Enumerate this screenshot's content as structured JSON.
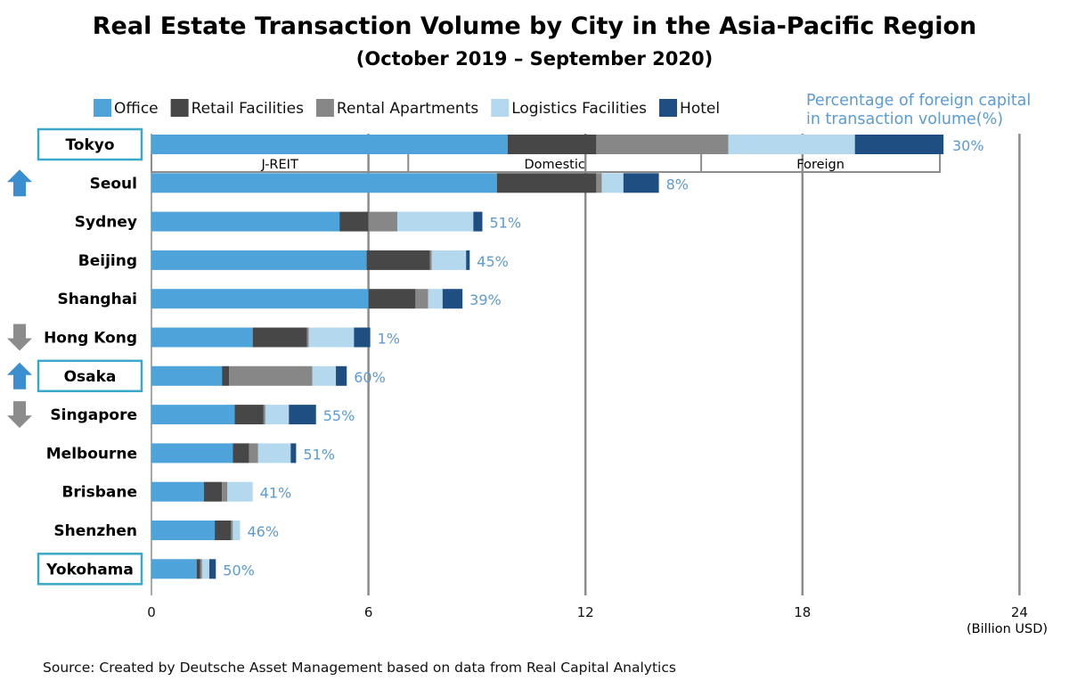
{
  "title": "Real Estate Transaction Volume by City in the Asia-Pacific Region",
  "subtitle": "(October 2019 – September 2020)",
  "pct_header_line1": "Percentage of foreign capital",
  "pct_header_line2": "in transaction volume(%)",
  "unit_label": "(Billion USD)",
  "source": "Source: Created by Deutsche Asset Management based on data from Real Capital Analytics",
  "tokyo_investor_breakdown": [
    {
      "label": "J-REIT",
      "start": 0,
      "end": 7.1
    },
    {
      "label": "Domestic",
      "start": 7.1,
      "end": 15.2
    },
    {
      "label": "Foreign",
      "start": 15.2,
      "end": 21.8
    }
  ],
  "chart_data": {
    "type": "bar",
    "orientation": "horizontal",
    "stacked": true,
    "title": "Real Estate Transaction Volume by City in the Asia-Pacific Region",
    "subtitle": "(October 2019 – September 2020)",
    "xlabel": "(Billion USD)",
    "xlim": [
      0,
      24
    ],
    "xticks": [
      0,
      6,
      12,
      18,
      24
    ],
    "grid": true,
    "legend_position": "top",
    "categories": [
      "Tokyo",
      "Seoul",
      "Sydney",
      "Beijing",
      "Shanghai",
      "Hong Kong",
      "Osaka",
      "Singapore",
      "Melbourne",
      "Brisbane",
      "Shenzhen",
      "Yokohama"
    ],
    "highlighted": [
      "Tokyo",
      "Osaka",
      "Yokohama"
    ],
    "rank_change": [
      "",
      "up",
      "",
      "",
      "",
      "down",
      "up",
      "down",
      "",
      "",
      "",
      ""
    ],
    "series": [
      {
        "name": "Office",
        "color": "#4FA3DB",
        "values": [
          9.85,
          9.55,
          5.2,
          5.95,
          6.0,
          2.8,
          1.95,
          2.3,
          2.25,
          1.45,
          1.75,
          1.25
        ]
      },
      {
        "name": "Retail Facilities",
        "color": "#474747",
        "values": [
          2.45,
          2.75,
          0.8,
          1.75,
          1.3,
          1.5,
          0.2,
          0.8,
          0.45,
          0.5,
          0.45,
          0.1
        ]
      },
      {
        "name": "Rental Apartments",
        "color": "#878787",
        "values": [
          3.65,
          0.15,
          0.8,
          0.05,
          0.35,
          0.05,
          2.3,
          0.05,
          0.25,
          0.15,
          0.05,
          0.05
        ]
      },
      {
        "name": "Logistics Facilities",
        "color": "#B4D9EE",
        "values": [
          3.5,
          0.6,
          2.1,
          0.95,
          0.4,
          1.25,
          0.65,
          0.65,
          0.9,
          0.7,
          0.2,
          0.2
        ]
      },
      {
        "name": "Hotel",
        "color": "#1F4E82",
        "values": [
          2.45,
          0.98,
          0.25,
          0.1,
          0.55,
          0.45,
          0.3,
          0.75,
          0.15,
          0.0,
          0.0,
          0.18
        ]
      }
    ],
    "foreign_capital_pct": [
      "30%",
      "8%",
      "51%",
      "45%",
      "39%",
      "1%",
      "60%",
      "55%",
      "51%",
      "41%",
      "46%",
      "50%"
    ]
  }
}
